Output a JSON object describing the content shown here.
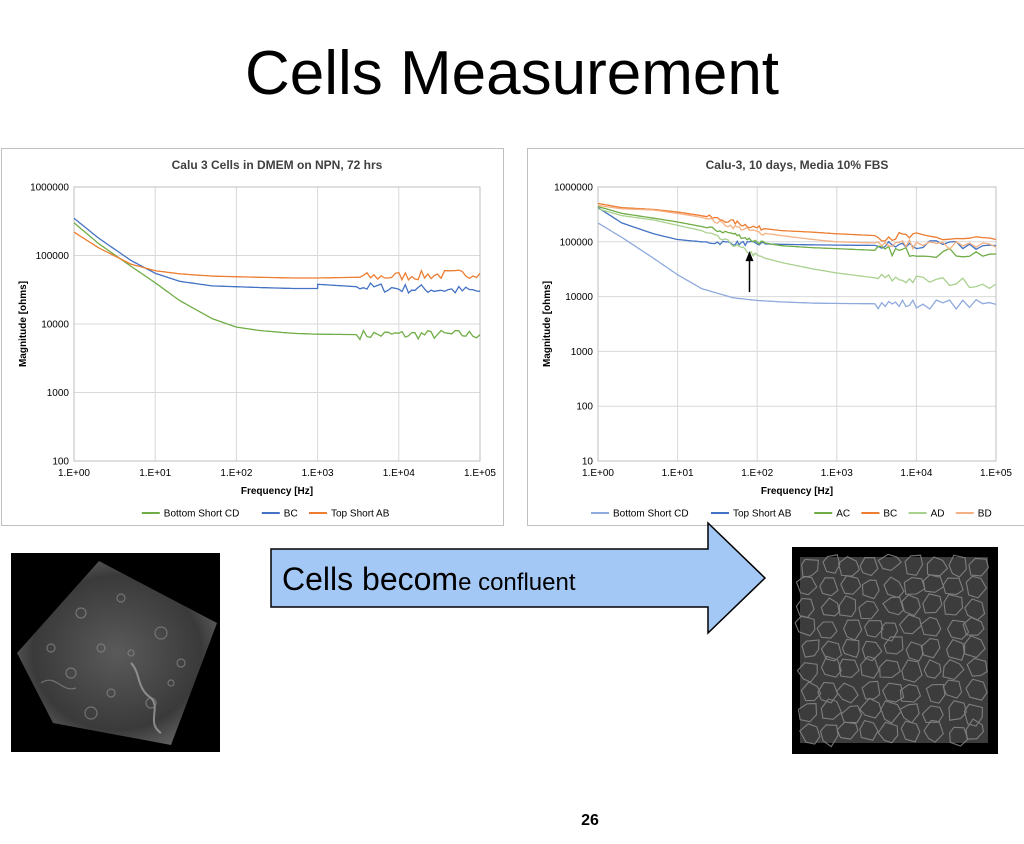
{
  "slide": {
    "title": "Cells Measurement",
    "arrow_text_large": "Cells becom",
    "arrow_text_small": "e confluent",
    "page_number": "26"
  },
  "chart_data": [
    {
      "type": "line",
      "title": "Calu 3 Cells in DMEM on NPN, 72 hrs",
      "xlabel": "Frequency [Hz]",
      "ylabel": "Magnitude [ohms]",
      "xscale": "log",
      "yscale": "log",
      "xlim": [
        1,
        100000
      ],
      "ylim": [
        100,
        1000000
      ],
      "xticks": [
        "1.E+00",
        "1.E+01",
        "1.E+02",
        "1.E+03",
        "1.E+04",
        "1.E+05"
      ],
      "yticks": [
        "100",
        "1000",
        "10000",
        "100000",
        "1000000"
      ],
      "grid": true,
      "legend_position": "bottom",
      "series": [
        {
          "name": "Bottom Short CD",
          "color": "#70ad47",
          "x": [
            1,
            2,
            5,
            10,
            20,
            50,
            100,
            200,
            500,
            1000,
            3000,
            10000,
            30000,
            100000
          ],
          "y": [
            300000,
            150000,
            70000,
            40000,
            22000,
            12000,
            9000,
            8000,
            7300,
            7100,
            7000,
            7000,
            7000,
            7000
          ]
        },
        {
          "name": "BC",
          "color": "#4472c4",
          "x": [
            1,
            2,
            5,
            10,
            20,
            50,
            100,
            200,
            500,
            1000,
            1001,
            3000,
            10000,
            30000,
            100000
          ],
          "y": [
            350000,
            180000,
            85000,
            55000,
            42000,
            36000,
            35000,
            34000,
            33000,
            33000,
            38000,
            35000,
            33000,
            32000,
            30000
          ]
        },
        {
          "name": "Top Short AB",
          "color": "#ed7d31",
          "x": [
            1,
            2,
            5,
            10,
            20,
            50,
            100,
            200,
            500,
            1000,
            3000,
            10000,
            30000,
            100000
          ],
          "y": [
            220000,
            130000,
            75000,
            60000,
            54000,
            50000,
            49000,
            48000,
            47000,
            47000,
            48000,
            50000,
            52000,
            55000
          ]
        }
      ]
    },
    {
      "type": "line",
      "title": "Calu-3, 10 days, Media 10% FBS",
      "xlabel": "Frequency [Hz]",
      "ylabel": "Magnitude [ohms]",
      "xscale": "log",
      "yscale": "log",
      "xlim": [
        1,
        100000
      ],
      "ylim": [
        10,
        1000000
      ],
      "xticks": [
        "1.E+00",
        "1.E+01",
        "1.E+02",
        "1.E+03",
        "1.E+04",
        "1.E+05"
      ],
      "yticks": [
        "10",
        "100",
        "1000",
        "10000",
        "100000",
        "1000000"
      ],
      "grid": true,
      "legend_position": "bottom",
      "annotation": {
        "type": "arrow",
        "x": 80,
        "y": 80000
      },
      "series": [
        {
          "name": "Bottom Short CD",
          "color": "#8faadc",
          "x": [
            1,
            2,
            5,
            10,
            20,
            50,
            100,
            200,
            500,
            1000,
            3000,
            10000,
            100000
          ],
          "y": [
            220000,
            120000,
            50000,
            25000,
            14000,
            9500,
            8500,
            8000,
            7600,
            7500,
            7400,
            7300,
            7200
          ]
        },
        {
          "name": "Top Short AB",
          "color": "#4472c4",
          "x": [
            1,
            2,
            5,
            10,
            20,
            50,
            100,
            200,
            500,
            1000,
            3000,
            10000,
            100000
          ],
          "y": [
            420000,
            220000,
            140000,
            110000,
            100000,
            95000,
            92000,
            90000,
            88000,
            87000,
            86000,
            85000,
            85000
          ]
        },
        {
          "name": "AC",
          "color": "#70ad47",
          "x": [
            1,
            2,
            5,
            10,
            20,
            50,
            100,
            200,
            500,
            1000,
            3000,
            10000,
            100000
          ],
          "y": [
            440000,
            330000,
            270000,
            230000,
            190000,
            140000,
            100000,
            85000,
            78000,
            75000,
            70000,
            65000,
            60000
          ]
        },
        {
          "name": "BC",
          "color": "#ed7d31",
          "x": [
            1,
            2,
            5,
            10,
            20,
            50,
            100,
            200,
            500,
            1000,
            3000,
            10000,
            100000
          ],
          "y": [
            500000,
            420000,
            390000,
            350000,
            300000,
            230000,
            180000,
            160000,
            150000,
            140000,
            130000,
            120000,
            110000
          ]
        },
        {
          "name": "AD",
          "color": "#a9d18e",
          "x": [
            1,
            2,
            5,
            10,
            20,
            50,
            100,
            200,
            500,
            1000,
            3000,
            10000,
            100000
          ],
          "y": [
            400000,
            300000,
            250000,
            200000,
            160000,
            90000,
            55000,
            42000,
            32000,
            27000,
            22000,
            20000,
            17000
          ]
        },
        {
          "name": "BD",
          "color": "#f4b183",
          "x": [
            1,
            2,
            5,
            10,
            20,
            50,
            100,
            200,
            500,
            1000,
            3000,
            10000,
            100000
          ],
          "y": [
            460000,
            400000,
            380000,
            330000,
            280000,
            190000,
            150000,
            130000,
            110000,
            100000,
            95000,
            90000,
            80000
          ]
        }
      ]
    }
  ]
}
